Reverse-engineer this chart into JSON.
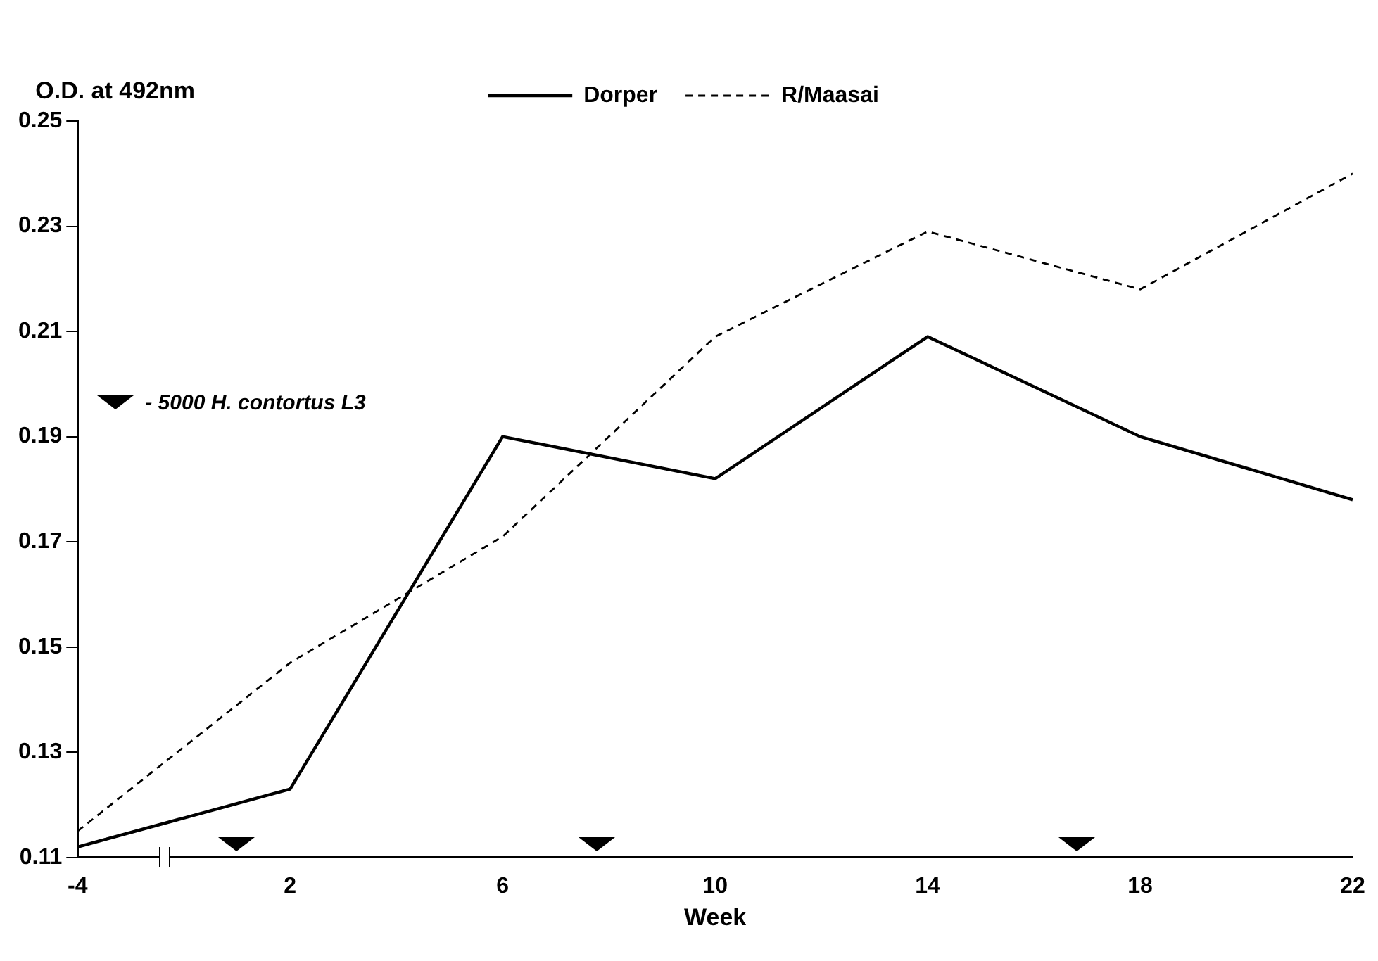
{
  "chart_data": {
    "type": "line",
    "xlabel": "Week",
    "ylabel": "O.D. at 492nm",
    "categories": [
      "-4",
      "2",
      "6",
      "10",
      "14",
      "18",
      "22"
    ],
    "series": [
      {
        "name": "Dorper",
        "color": "#000000",
        "line_style": "solid",
        "values": [
          0.112,
          0.123,
          0.19,
          0.182,
          0.209,
          0.19,
          0.178
        ]
      },
      {
        "name": "R/Maasai",
        "color": "#000000",
        "line_style": "dashed",
        "values": [
          0.115,
          0.147,
          0.171,
          0.209,
          0.229,
          0.218,
          0.24
        ]
      }
    ],
    "ylim": [
      0.11,
      0.25
    ],
    "yticks": [
      0.11,
      0.13,
      0.15,
      0.17,
      0.19,
      0.21,
      0.23,
      0.25
    ],
    "grid": false,
    "legend": "top",
    "marker": "none",
    "annotations": [
      "- 5000 H. contortus L3"
    ]
  }
}
